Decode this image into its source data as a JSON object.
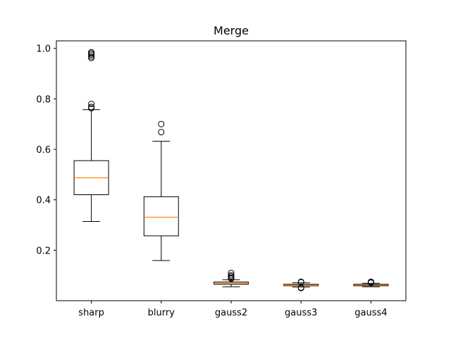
{
  "chart_data": {
    "type": "box",
    "title": "Merge",
    "xlabel": "",
    "ylabel": "",
    "categories": [
      "sharp",
      "blurry",
      "gauss2",
      "gauss3",
      "gauss4"
    ],
    "ylim": [
      0.0,
      1.03
    ],
    "yticks": [
      0.2,
      0.4,
      0.6,
      0.8,
      1.0
    ],
    "ytick_labels": [
      "0.2",
      "0.4",
      "0.6",
      "0.8",
      "1.0"
    ],
    "boxes": [
      {
        "name": "sharp",
        "whisker_low": 0.314,
        "q1": 0.42,
        "median": 0.487,
        "q3": 0.555,
        "whisker_high": 0.757,
        "outliers": [
          0.763,
          0.768,
          0.78,
          0.962,
          0.968,
          0.975,
          0.98,
          0.985
        ]
      },
      {
        "name": "blurry",
        "whisker_low": 0.159,
        "q1": 0.257,
        "median": 0.331,
        "q3": 0.412,
        "whisker_high": 0.632,
        "outliers": [
          0.668,
          0.7
        ]
      },
      {
        "name": "gauss2",
        "whisker_low": 0.055,
        "q1": 0.065,
        "median": 0.069,
        "q3": 0.074,
        "whisker_high": 0.083,
        "outliers": [
          0.087,
          0.091,
          0.096,
          0.101,
          0.11
        ]
      },
      {
        "name": "gauss3",
        "whisker_low": 0.054,
        "q1": 0.059,
        "median": 0.061,
        "q3": 0.065,
        "whisker_high": 0.071,
        "outliers": [
          0.05,
          0.052,
          0.073,
          0.075
        ]
      },
      {
        "name": "gauss4",
        "whisker_low": 0.055,
        "q1": 0.059,
        "median": 0.062,
        "q3": 0.065,
        "whisker_high": 0.069,
        "outliers": [
          0.071,
          0.073,
          0.075
        ]
      }
    ],
    "colors": {
      "box_edge": "#000000",
      "median": "#ff7f0e",
      "outlier_edge": "#000000"
    },
    "grid": false,
    "legend": "none"
  }
}
